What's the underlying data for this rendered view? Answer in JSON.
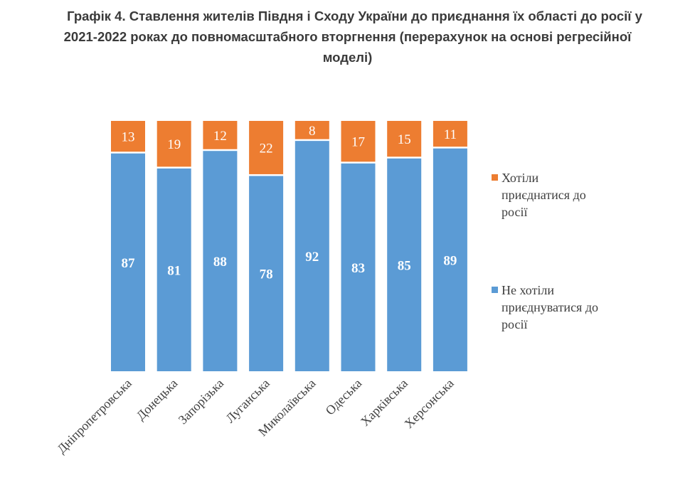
{
  "chart_data": {
    "type": "bar",
    "stacked": true,
    "title_lines": [
      "Графік 4. Ставлення жителів Півдня і Сходу України до приєднання їх області до росії у",
      "2021-2022 роках до повномасштабного вторгнення (перерахунок на основі регресійної",
      "моделі)"
    ],
    "categories": [
      "Дніпропетровська",
      "Донецька",
      "Запорізька",
      "Луганська",
      "Миколаївська",
      "Одеська",
      "Харківська",
      "Херсонська"
    ],
    "series": [
      {
        "name": "Не хотіли приєднуватися до росії",
        "legend_lines": [
          "Не хотіли",
          "приєднуватися до",
          "росії"
        ],
        "color": "#5B9BD5",
        "values": [
          87,
          81,
          88,
          78,
          92,
          83,
          85,
          89
        ]
      },
      {
        "name": "Хотіли приєднатися до росії",
        "legend_lines": [
          "Хотіли",
          "приєднатися до",
          "росії"
        ],
        "color": "#ED7D31",
        "values": [
          13,
          19,
          12,
          22,
          8,
          17,
          15,
          11
        ]
      }
    ],
    "ylim": [
      0,
      100
    ],
    "grid": false,
    "legend_position": "right"
  }
}
